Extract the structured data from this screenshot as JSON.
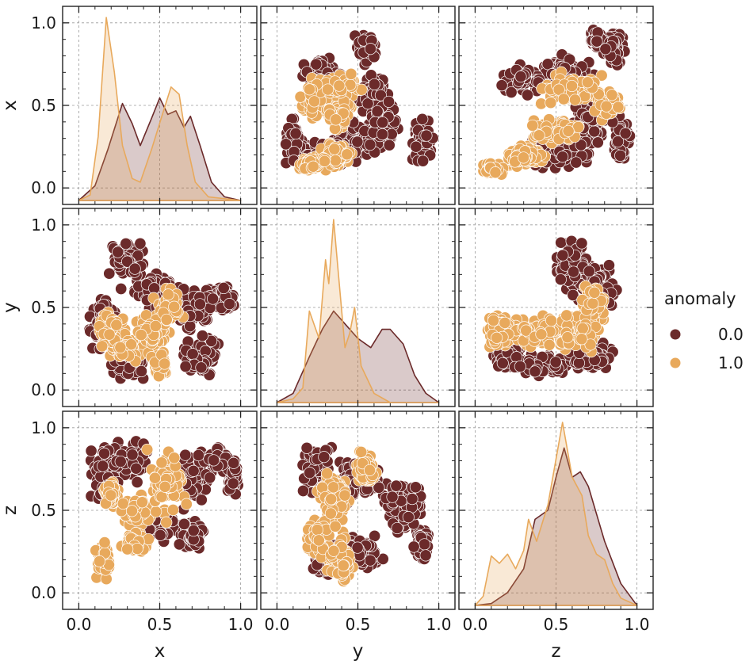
{
  "chart_data": {
    "type": "pairplot",
    "variables": [
      "x",
      "y",
      "z"
    ],
    "hue": "anomaly",
    "ticks": [
      0.0,
      0.5,
      1.0
    ],
    "tick_labels": [
      "0.0",
      "0.5",
      "1.0"
    ],
    "axis_range": [
      -0.1,
      1.1
    ],
    "grid": true,
    "legend": {
      "title": "anomaly",
      "placement": "right",
      "entries": [
        {
          "label": "0.0",
          "color": "#6b2a2a"
        },
        {
          "label": "1.0",
          "color": "#e8a95c"
        }
      ]
    },
    "series": [
      {
        "name": "0.0",
        "color": "#6b2a2a",
        "kde": {
          "x": [
            [
              0.0,
              0.0
            ],
            [
              0.1,
              0.08
            ],
            [
              0.18,
              0.28
            ],
            [
              0.27,
              0.53
            ],
            [
              0.33,
              0.42
            ],
            [
              0.38,
              0.3
            ],
            [
              0.45,
              0.45
            ],
            [
              0.5,
              0.56
            ],
            [
              0.55,
              0.47
            ],
            [
              0.6,
              0.49
            ],
            [
              0.65,
              0.4
            ],
            [
              0.69,
              0.46
            ],
            [
              0.75,
              0.3
            ],
            [
              0.82,
              0.1
            ],
            [
              0.9,
              0.02
            ],
            [
              1.0,
              0.0
            ]
          ],
          "y": [
            [
              0.0,
              0.0
            ],
            [
              0.1,
              0.05
            ],
            [
              0.2,
              0.25
            ],
            [
              0.28,
              0.4
            ],
            [
              0.35,
              0.5
            ],
            [
              0.42,
              0.43
            ],
            [
              0.5,
              0.35
            ],
            [
              0.58,
              0.3
            ],
            [
              0.65,
              0.4
            ],
            [
              0.7,
              0.4
            ],
            [
              0.78,
              0.32
            ],
            [
              0.85,
              0.15
            ],
            [
              0.92,
              0.05
            ],
            [
              1.0,
              0.0
            ]
          ],
          "z": [
            [
              0.0,
              0.0
            ],
            [
              0.1,
              0.01
            ],
            [
              0.2,
              0.07
            ],
            [
              0.3,
              0.2
            ],
            [
              0.37,
              0.47
            ],
            [
              0.45,
              0.52
            ],
            [
              0.5,
              0.7
            ],
            [
              0.55,
              0.86
            ],
            [
              0.6,
              0.7
            ],
            [
              0.65,
              0.73
            ],
            [
              0.7,
              0.65
            ],
            [
              0.8,
              0.35
            ],
            [
              0.9,
              0.12
            ],
            [
              1.0,
              0.0
            ]
          ]
        }
      },
      {
        "name": "1.0",
        "color": "#e8a95c",
        "kde": {
          "x": [
            [
              0.0,
              0.0
            ],
            [
              0.07,
              0.03
            ],
            [
              0.12,
              0.35
            ],
            [
              0.17,
              1.0
            ],
            [
              0.22,
              0.7
            ],
            [
              0.27,
              0.3
            ],
            [
              0.33,
              0.12
            ],
            [
              0.38,
              0.1
            ],
            [
              0.45,
              0.28
            ],
            [
              0.52,
              0.48
            ],
            [
              0.57,
              0.62
            ],
            [
              0.62,
              0.58
            ],
            [
              0.67,
              0.3
            ],
            [
              0.72,
              0.1
            ],
            [
              0.8,
              0.02
            ],
            [
              1.0,
              0.0
            ]
          ],
          "y": [
            [
              0.0,
              0.0
            ],
            [
              0.1,
              0.02
            ],
            [
              0.16,
              0.08
            ],
            [
              0.2,
              0.5
            ],
            [
              0.26,
              0.35
            ],
            [
              0.3,
              0.78
            ],
            [
              0.32,
              0.65
            ],
            [
              0.35,
              1.0
            ],
            [
              0.38,
              0.7
            ],
            [
              0.42,
              0.3
            ],
            [
              0.45,
              0.38
            ],
            [
              0.48,
              0.52
            ],
            [
              0.52,
              0.2
            ],
            [
              0.6,
              0.05
            ],
            [
              0.7,
              0.0
            ],
            [
              1.0,
              0.0
            ]
          ],
          "z": [
            [
              0.0,
              0.0
            ],
            [
              0.05,
              0.05
            ],
            [
              0.1,
              0.27
            ],
            [
              0.15,
              0.23
            ],
            [
              0.2,
              0.28
            ],
            [
              0.25,
              0.2
            ],
            [
              0.3,
              0.3
            ],
            [
              0.33,
              0.47
            ],
            [
              0.38,
              0.35
            ],
            [
              0.45,
              0.55
            ],
            [
              0.5,
              0.8
            ],
            [
              0.54,
              1.0
            ],
            [
              0.6,
              0.7
            ],
            [
              0.66,
              0.6
            ],
            [
              0.7,
              0.38
            ],
            [
              0.75,
              0.28
            ],
            [
              0.8,
              0.25
            ],
            [
              0.85,
              0.12
            ],
            [
              0.9,
              0.04
            ],
            [
              1.0,
              0.0
            ]
          ]
        }
      }
    ],
    "cells": [
      {
        "row": "x",
        "col": "x",
        "kind": "kde",
        "ylabel": "x",
        "xlabel": ""
      },
      {
        "row": "x",
        "col": "y",
        "kind": "scatter",
        "ylabel": "",
        "xlabel": ""
      },
      {
        "row": "x",
        "col": "z",
        "kind": "scatter",
        "ylabel": "",
        "xlabel": ""
      },
      {
        "row": "y",
        "col": "x",
        "kind": "scatter",
        "ylabel": "y",
        "xlabel": ""
      },
      {
        "row": "y",
        "col": "y",
        "kind": "kde",
        "ylabel": "",
        "xlabel": ""
      },
      {
        "row": "y",
        "col": "z",
        "kind": "scatter",
        "ylabel": "",
        "xlabel": ""
      },
      {
        "row": "z",
        "col": "x",
        "kind": "scatter",
        "ylabel": "z",
        "xlabel": "x"
      },
      {
        "row": "z",
        "col": "y",
        "kind": "scatter",
        "ylabel": "",
        "xlabel": "y"
      },
      {
        "row": "z",
        "col": "z",
        "kind": "kde",
        "ylabel": "",
        "xlabel": "z"
      }
    ]
  }
}
